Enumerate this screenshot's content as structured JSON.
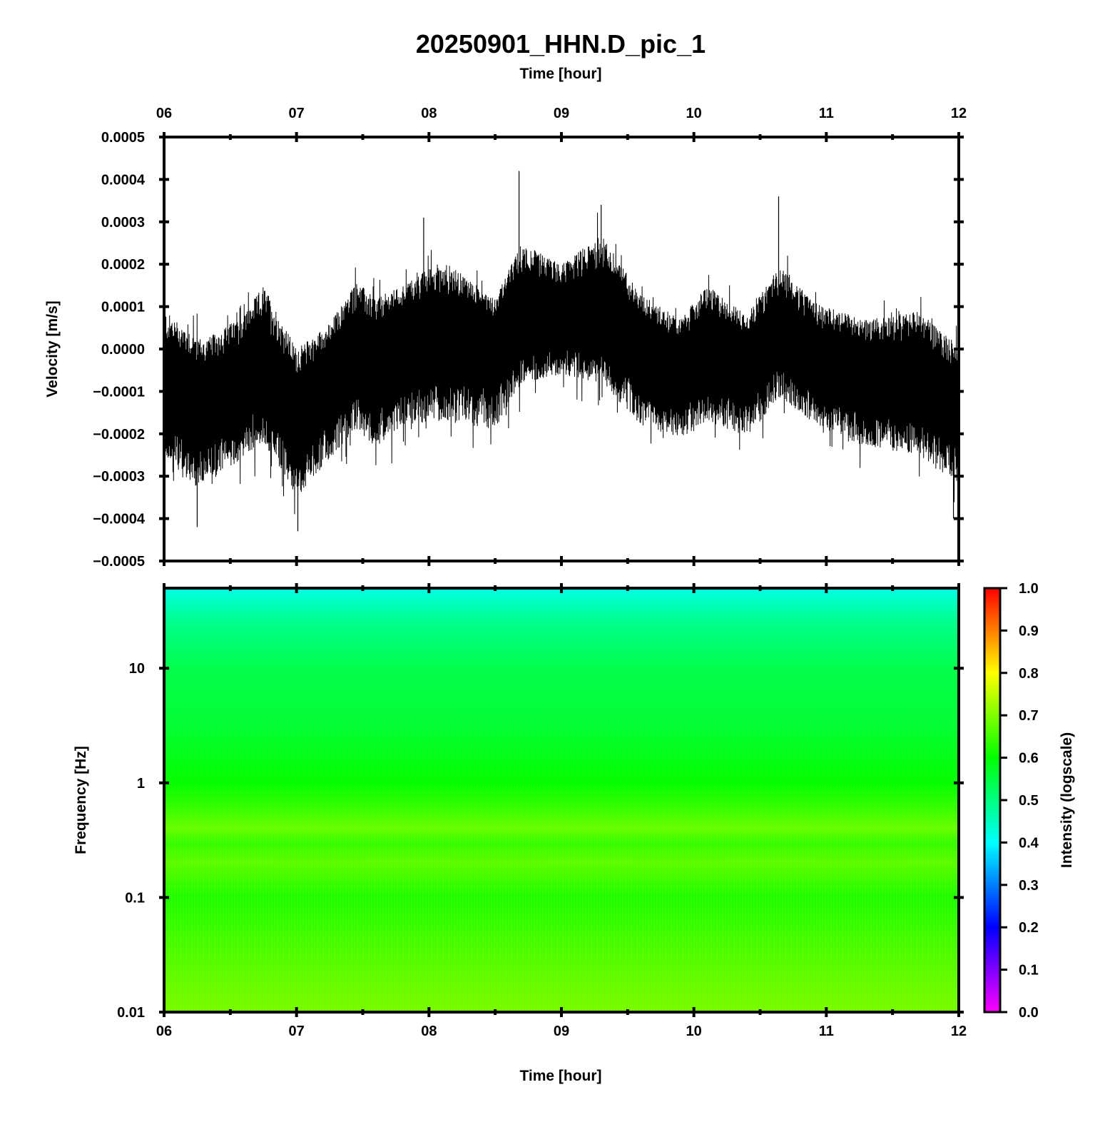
{
  "chart_data": [
    {
      "type": "line",
      "title": "20250901_HHN.D_pic_1",
      "xlabel_top": "Time [hour]",
      "ylabel": "Velocity [m/s]",
      "xlim": [
        6,
        12
      ],
      "ylim": [
        -0.0005,
        0.0005
      ],
      "x_ticks": [
        "06",
        "07",
        "08",
        "09",
        "10",
        "11",
        "12"
      ],
      "y_ticks": [
        "0.0005",
        "0.0004",
        "0.0003",
        "0.0002",
        "0.0001",
        "0.0000",
        "−0.0001",
        "−0.0002",
        "−0.0003",
        "−0.0004",
        "−0.0005"
      ],
      "series": [
        {
          "color": "#000000",
          "center": {
            "x": [
              6.0,
              6.25,
              6.5,
              6.7,
              7.0,
              7.2,
              7.45,
              7.6,
              7.8,
              8.1,
              8.5,
              8.7,
              9.0,
              9.3,
              9.6,
              9.9,
              10.1,
              10.4,
              10.65,
              10.9,
              11.3,
              11.7,
              12.0
            ],
            "y": [
              -9e-05,
              -0.00012,
              -9e-05,
              -3e-05,
              -0.00014,
              -9e-05,
              -1e-05,
              -4e-05,
              3e-05,
              3e-05,
              2e-05,
              9e-05,
              8e-05,
              9e-05,
              1e-05,
              -4e-05,
              1e-05,
              -3e-05,
              4e-05,
              -1e-05,
              -6e-05,
              -8e-05,
              -0.00013
            ]
          },
          "upper_envelope": {
            "x": [
              6.0,
              6.3,
              6.6,
              6.75,
              7.0,
              7.25,
              7.45,
              7.6,
              7.8,
              8.1,
              8.5,
              8.7,
              9.0,
              9.3,
              9.6,
              9.9,
              10.1,
              10.4,
              10.65,
              10.9,
              11.3,
              11.7,
              12.0
            ],
            "y": [
              9e-05,
              2e-05,
              8e-05,
              0.00015,
              0.0,
              6e-05,
              0.00016,
              0.00012,
              0.00015,
              0.00021,
              0.00012,
              0.00025,
              0.0002,
              0.00027,
              0.00013,
              7e-05,
              0.00015,
              8e-05,
              0.0002,
              0.00011,
              7e-05,
              9e-05,
              1e-05
            ]
          },
          "lower_envelope": {
            "x": [
              6.0,
              6.25,
              6.5,
              6.75,
              7.0,
              7.25,
              7.45,
              7.6,
              7.8,
              8.1,
              8.5,
              8.7,
              9.0,
              9.3,
              9.6,
              9.9,
              10.1,
              10.4,
              10.65,
              10.9,
              11.3,
              11.7,
              12.0
            ],
            "y": [
              -0.00025,
              -0.00033,
              -0.00028,
              -0.00022,
              -0.00035,
              -0.00026,
              -0.00019,
              -0.00023,
              -0.00018,
              -0.00017,
              -0.00019,
              -8e-05,
              -6e-05,
              -8e-05,
              -0.00018,
              -0.00021,
              -0.00017,
              -0.00021,
              -0.00011,
              -0.00018,
              -0.00023,
              -0.00025,
              -0.00032
            ]
          },
          "peaks": [
            {
              "x": 8.68,
              "y": 0.00042
            },
            {
              "x": 9.3,
              "y": 0.00034
            },
            {
              "x": 10.64,
              "y": 0.00036
            },
            {
              "x": 7.96,
              "y": 0.00031
            },
            {
              "x": 6.25,
              "y": -0.00042
            },
            {
              "x": 7.01,
              "y": -0.00043
            },
            {
              "x": 11.96,
              "y": -0.0004
            }
          ]
        }
      ]
    },
    {
      "type": "heatmap",
      "xlabel": "Time [hour]",
      "ylabel": "Frequency [Hz]",
      "xlim": [
        6,
        12
      ],
      "ylim": [
        0.01,
        50
      ],
      "y_scale": "log",
      "x_ticks": [
        "06",
        "07",
        "08",
        "09",
        "10",
        "11",
        "12"
      ],
      "y_ticks": [
        {
          "value": 10,
          "label": "10"
        },
        {
          "value": 1,
          "label": "1"
        },
        {
          "value": 0.1,
          "label": "0.1"
        },
        {
          "value": 0.01,
          "label": "0.01"
        }
      ],
      "intensity_profile": {
        "frequency": [
          0.01,
          0.03,
          0.1,
          0.2,
          0.3,
          0.4,
          0.6,
          1.0,
          3.0,
          10,
          25,
          50
        ],
        "intensity": [
          0.69,
          0.66,
          0.62,
          0.67,
          0.64,
          0.68,
          0.64,
          0.6,
          0.56,
          0.54,
          0.49,
          0.42
        ]
      },
      "colorbar": {
        "label": "Intensity (logscale)",
        "range": [
          0.0,
          1.0
        ],
        "ticks": [
          "1.0",
          "0.9",
          "0.8",
          "0.7",
          "0.6",
          "0.5",
          "0.4",
          "0.3",
          "0.2",
          "0.1",
          "0.0"
        ],
        "colors": [
          "#ff00ff",
          "#0000ff",
          "#00ffff",
          "#00ff00",
          "#ffff00",
          "#ff0000"
        ]
      }
    }
  ]
}
